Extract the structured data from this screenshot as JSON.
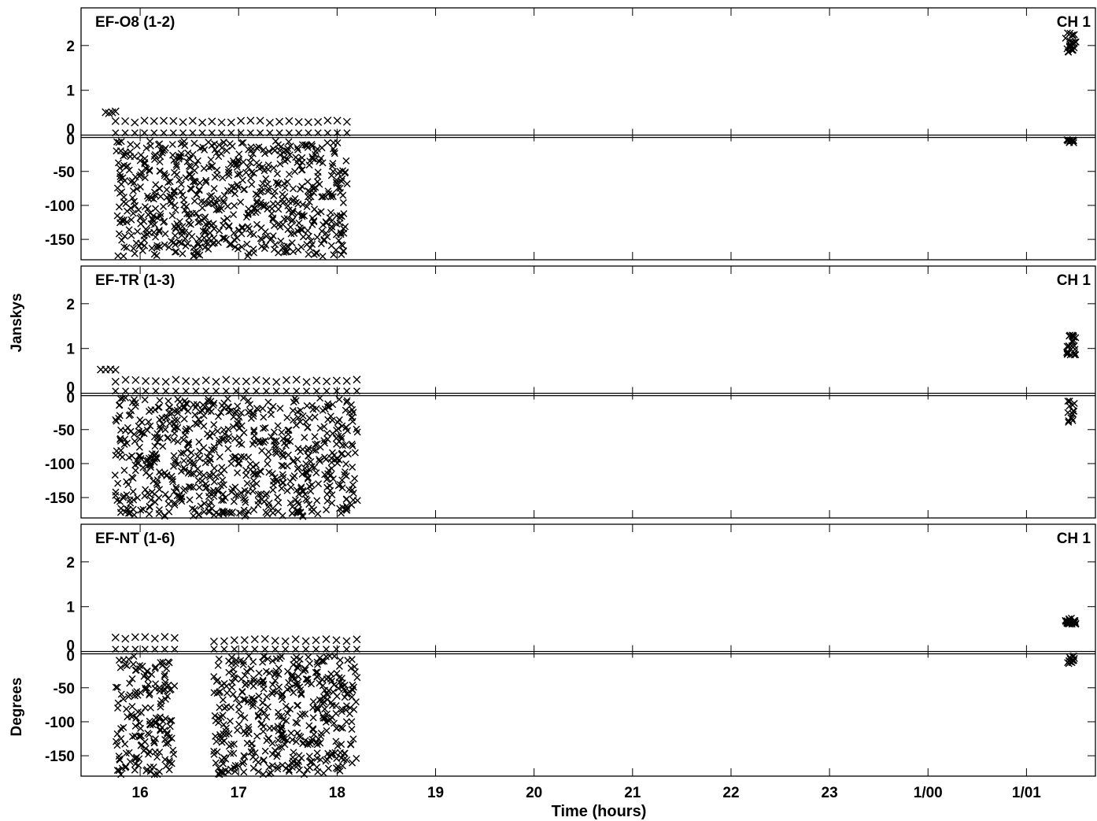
{
  "chart_data": {
    "type": "scatter",
    "xlabel": "Time (hours)",
    "x_tick_labels": [
      "16",
      "17",
      "18",
      "19",
      "20",
      "21",
      "22",
      "23",
      "1/00",
      "1/01"
    ],
    "x_ticks_hours": [
      16,
      17,
      18,
      19,
      20,
      21,
      22,
      23,
      24,
      25
    ],
    "xlim": [
      15.4,
      25.7
    ],
    "amp_ylabel": "Janskys",
    "phase_ylabel": "Degrees",
    "amp_ticks": [
      0,
      1,
      2
    ],
    "amp_ylim": [
      0,
      2.7
    ],
    "phase_ticks": [
      0,
      -50,
      -100,
      -150
    ],
    "phase_ylim": [
      -180,
      0
    ],
    "marker": "x",
    "panels": [
      {
        "baseline": "EF-O8 (1-2)",
        "channel": "CH 1",
        "amp_segments": [
          {
            "t_start": 15.65,
            "t_end": 15.75,
            "amp": 0.5
          },
          {
            "t_start": 15.75,
            "t_end": 18.1,
            "amp": 0.3,
            "low": 0.05
          }
        ],
        "amp_late": [
          {
            "t": 25.45,
            "amp_min": 1.85,
            "amp_max": 2.3
          }
        ],
        "phase_segments": [
          {
            "t_start": 15.75,
            "t_end": 18.1,
            "phase_min": -175,
            "phase_max": -5
          }
        ],
        "phase_late": [
          {
            "t": 25.45,
            "phase_min": -8,
            "phase_max": -3
          }
        ]
      },
      {
        "baseline": "EF-TR (1-3)",
        "channel": "CH 1",
        "amp_segments": [
          {
            "t_start": 15.6,
            "t_end": 15.75,
            "amp": 0.55
          },
          {
            "t_start": 15.75,
            "t_end": 18.2,
            "amp": 0.28,
            "low": 0.05
          }
        ],
        "amp_late": [
          {
            "t": 25.45,
            "amp_min": 0.85,
            "amp_max": 1.3
          }
        ],
        "phase_segments": [
          {
            "t_start": 15.75,
            "t_end": 18.2,
            "phase_min": -178,
            "phase_max": -3
          }
        ],
        "phase_late": [
          {
            "t": 25.45,
            "phase_min": -40,
            "phase_max": -5
          }
        ]
      },
      {
        "baseline": "EF-NT (1-6)",
        "channel": "CH 1",
        "amp_segments": [
          {
            "t_start": 15.75,
            "t_end": 16.35,
            "amp": 0.3,
            "low": 0.05
          },
          {
            "t_start": 16.75,
            "t_end": 18.2,
            "amp": 0.25,
            "low": 0.05
          }
        ],
        "amp_late": [
          {
            "t": 25.45,
            "amp_min": 0.6,
            "amp_max": 0.75
          }
        ],
        "phase_segments": [
          {
            "t_start": 15.75,
            "t_end": 16.35,
            "phase_min": -178,
            "phase_max": -3
          },
          {
            "t_start": 16.75,
            "t_end": 18.2,
            "phase_min": -178,
            "phase_max": -3
          }
        ],
        "phase_late": [
          {
            "t": 25.45,
            "phase_min": -15,
            "phase_max": -3
          }
        ]
      }
    ]
  }
}
